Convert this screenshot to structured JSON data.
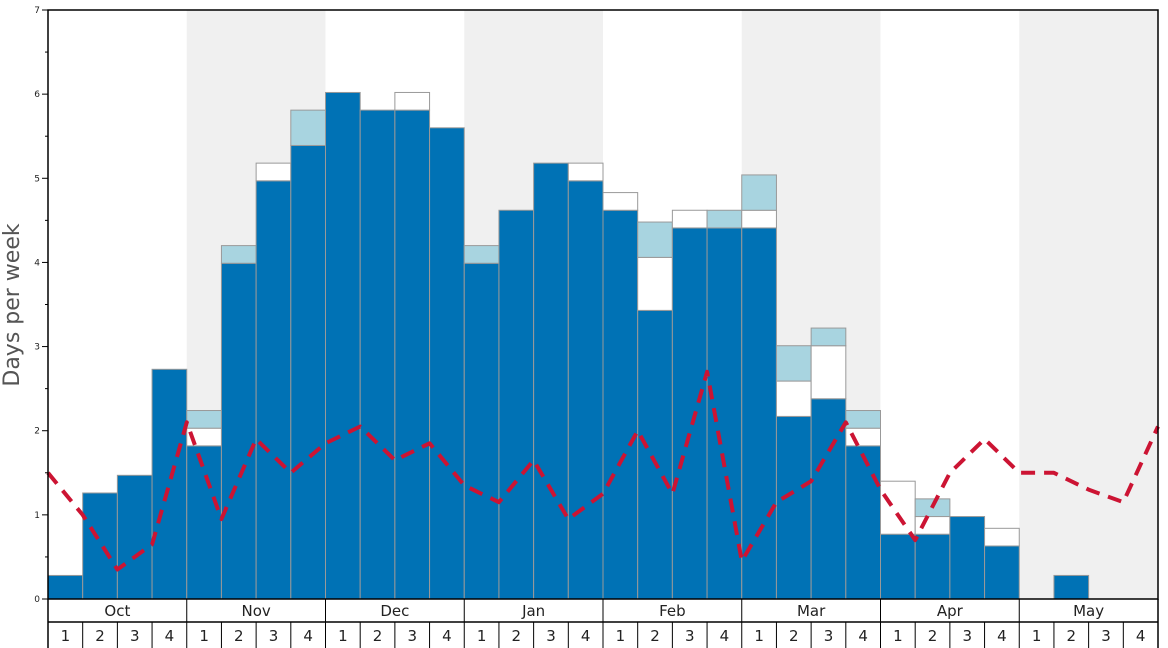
{
  "chart_data": {
    "type": "bar",
    "title": "",
    "ylabel": "Days per week",
    "xlabel": "",
    "ylim": [
      0,
      7
    ],
    "y_ticks": [
      "0",
      "1",
      "2",
      "3",
      "4",
      "5",
      "6",
      "7"
    ],
    "months": [
      "Oct",
      "Nov",
      "Dec",
      "Jan",
      "Feb",
      "Mar",
      "Apr",
      "May"
    ],
    "week_labels": [
      "1",
      "2",
      "3",
      "4"
    ],
    "shaded_months": [
      "Nov",
      "Jan",
      "Mar",
      "May"
    ],
    "series": [
      {
        "values": [
          0.28,
          1.26,
          1.47,
          2.73,
          1.82,
          3.99,
          4.97,
          5.39,
          6.02,
          5.81,
          5.81,
          5.6,
          3.99,
          4.62,
          5.18,
          4.97,
          4.62,
          3.43,
          4.41,
          4.41,
          4.41,
          2.17,
          2.38,
          1.82,
          0.77,
          0.77,
          0.98,
          0.63,
          0,
          0.28,
          0,
          0
        ],
        "color": "#0072b5"
      },
      {
        "values": [
          0,
          0,
          0,
          0,
          0.21,
          0,
          0.21,
          0,
          0,
          0,
          0.21,
          0,
          0,
          0,
          0,
          0.21,
          0.21,
          0.63,
          0.21,
          0,
          0.21,
          0.42,
          0.63,
          0.21,
          0.63,
          0.21,
          0,
          0.21,
          0,
          0,
          0,
          0
        ],
        "color": "#ffffff"
      },
      {
        "values": [
          0,
          0,
          0,
          0,
          0.21,
          0.21,
          0,
          0.42,
          0,
          0,
          0,
          0,
          0.21,
          0,
          0,
          0,
          0,
          0.42,
          0,
          0.21,
          0.42,
          0.42,
          0.21,
          0.21,
          0,
          0.21,
          0,
          0,
          0,
          0,
          0,
          0
        ],
        "color": "#a8d4e0"
      },
      {
        "values": [
          1.5,
          1.0,
          0.35,
          0.65,
          2.1,
          0.95,
          1.9,
          1.5,
          1.85,
          2.05,
          1.65,
          1.85,
          1.35,
          1.15,
          1.65,
          0.95,
          1.25,
          2.0,
          1.25,
          2.7,
          0.45,
          1.15,
          1.4,
          2.1,
          1.3,
          0.7,
          1.5,
          1.9,
          1.5,
          1.5,
          1.3,
          1.15,
          2.05
        ],
        "color": "#cc1433",
        "style": "dashed"
      }
    ],
    "grid": false
  }
}
